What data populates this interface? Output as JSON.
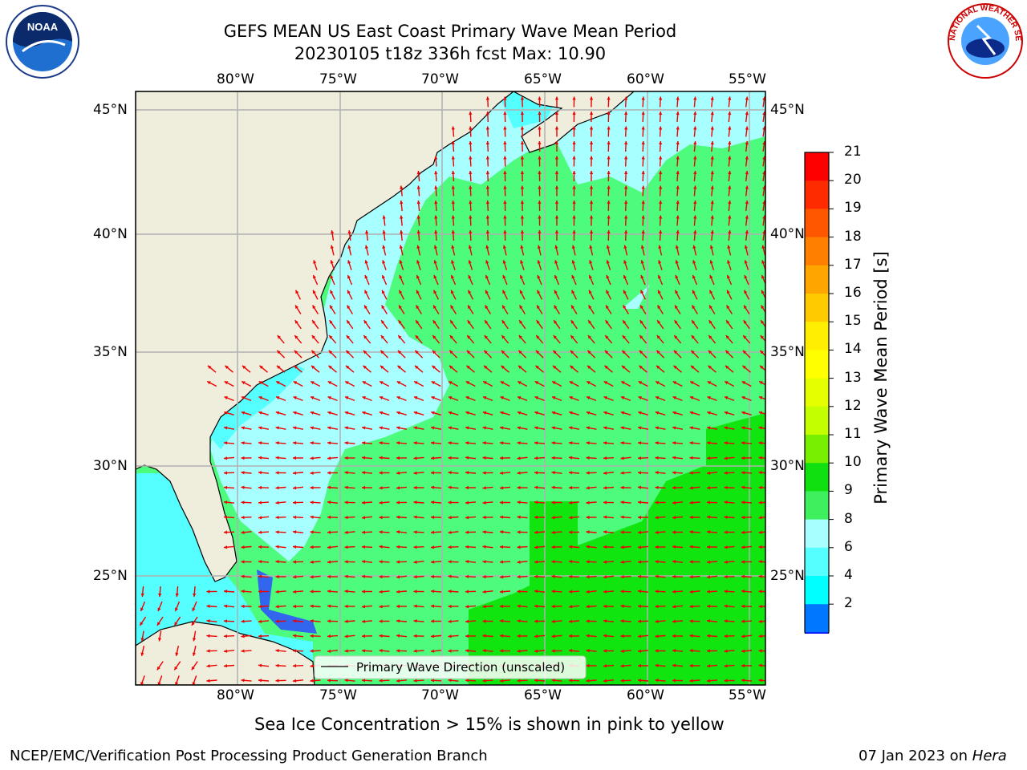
{
  "title": {
    "line1": "GEFS MEAN US East Coast Primary Wave Mean Period",
    "line2": "20230105 t18z 336h fcst   Max: 10.90"
  },
  "logos": {
    "left": {
      "icon": "noaa-logo",
      "text": "NOAA"
    },
    "right": {
      "icon": "nws-logo",
      "text": "NATIONAL WEATHER SERVICE"
    }
  },
  "map": {
    "lon_ticks": [
      "80°W",
      "75°W",
      "70°W",
      "65°W",
      "60°W",
      "55°W"
    ],
    "lat_ticks": [
      "45°N",
      "40°N",
      "35°N",
      "30°N",
      "25°N"
    ],
    "legend_label": "Primary Wave Direction (unscaled)",
    "colors": {
      "land": "#efeddc",
      "sea_light_cyan": "#a8ffff",
      "sea_cyan": "#55ffff",
      "sea_green_light": "#4dfb7d",
      "sea_green": "#10e510",
      "sea_blue": "#3366ee",
      "arrow": "#ee0000",
      "grid": "#b0b0b0"
    }
  },
  "colorbar": {
    "label": "Primary Wave Mean Period [s]",
    "ticks": [
      "21",
      "20",
      "19",
      "18",
      "17",
      "16",
      "15",
      "14",
      "13",
      "12",
      "11",
      "10",
      "9",
      "8",
      "6",
      "4",
      "2"
    ],
    "colors": [
      "#ff0000",
      "#ff2b00",
      "#ff5600",
      "#ff8000",
      "#ffa500",
      "#ffca00",
      "#ffee00",
      "#ffff00",
      "#e6ff00",
      "#c4ff00",
      "#78ee00",
      "#10e010",
      "#3ef05e",
      "#a8ffff",
      "#55ffff",
      "#00ffff",
      "#0077ff"
    ],
    "extend_color": "#0000ff"
  },
  "footer": {
    "ice_note": "Sea Ice Concentration > 15% is shown in pink to yellow",
    "left": "NCEP/EMC/Verification Post Processing Product Generation Branch",
    "right_date": "07 Jan 2023 on ",
    "right_host": "Hera"
  }
}
